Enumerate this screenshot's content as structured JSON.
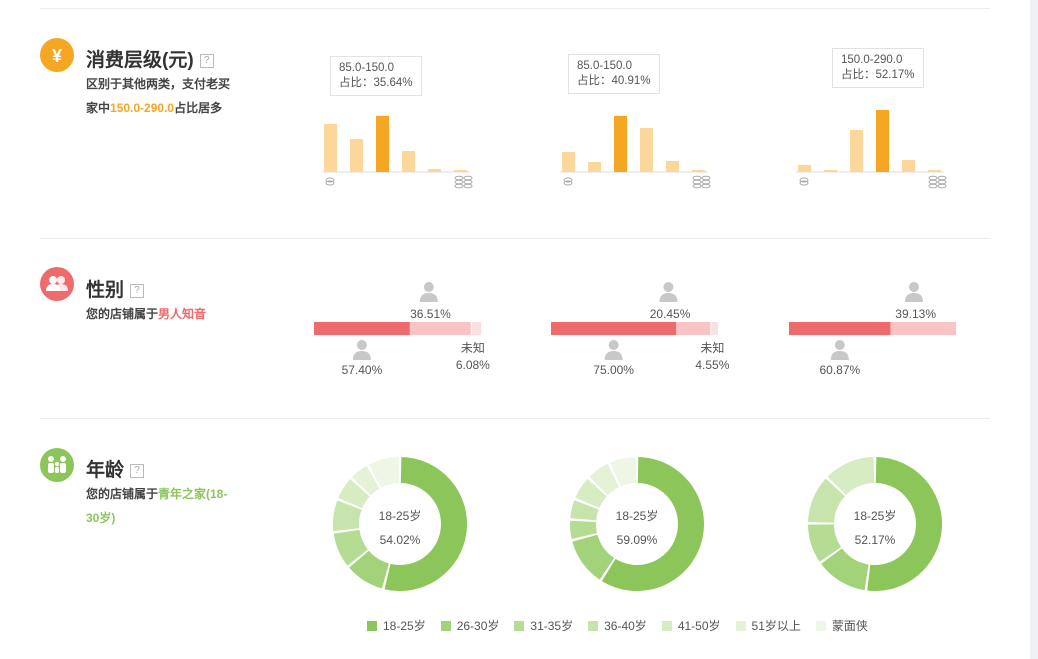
{
  "sections": {
    "spending": {
      "title": "消费层级(元)",
      "help": "?",
      "desc_line1": "区别于其他两类，支付老买",
      "desc_prefix": "家中",
      "desc_highlight": "150.0-290.0",
      "desc_suffix": "占比居多"
    },
    "gender": {
      "title": "性别",
      "help": "?",
      "desc_prefix": "您的店铺属于",
      "desc_highlight": "男人知音"
    },
    "age": {
      "title": "年龄",
      "help": "?",
      "desc_prefix": "您的店铺属于",
      "desc_highlight": "青年之家(18-",
      "desc_highlight2": "30岁)"
    }
  },
  "icons": {
    "spending": "yuan-icon",
    "gender": "people-icon",
    "age": "family-icon",
    "person": "person-icon",
    "coin_small": "coin-icon",
    "coin_stack": "coin-stack-icon"
  },
  "colors": {
    "orange": "#f5a623",
    "orange_light": "#fbd79b",
    "red": "#ef6b6b",
    "pink": "#f8c4c4",
    "green_dark": "#8cc65a",
    "green_pale": "#eef7e6"
  },
  "chart_data": [
    {
      "type": "bar",
      "tooltip_range": "85.0-150.0",
      "tooltip_label": "占比：35.64%",
      "values": [
        48,
        33,
        56,
        21,
        3,
        2
      ],
      "highlight_index": 2
    },
    {
      "type": "bar",
      "tooltip_range": "85.0-150.0",
      "tooltip_label": "占比：40.91%",
      "values": [
        20,
        10,
        56,
        44,
        11,
        2
      ],
      "highlight_index": 2
    },
    {
      "type": "bar",
      "tooltip_range": "150.0-290.0",
      "tooltip_label": "占比：52.17%",
      "values": [
        7,
        2,
        42,
        62,
        12,
        2
      ],
      "highlight_index": 3
    },
    {
      "type": "bar",
      "male_pct": 57.4,
      "female_pct": 36.51,
      "unknown_pct": 6.08,
      "male_label": "57.40%",
      "female_label": "36.51%",
      "unknown_label": "6.08%",
      "unknown_name": "未知"
    },
    {
      "type": "bar",
      "male_pct": 75.0,
      "female_pct": 20.45,
      "unknown_pct": 4.55,
      "male_label": "75.00%",
      "female_label": "20.45%",
      "unknown_label": "4.55%",
      "unknown_name": "未知"
    },
    {
      "type": "bar",
      "male_pct": 60.87,
      "female_pct": 39.13,
      "unknown_pct": 0,
      "male_label": "60.87%",
      "female_label": "39.13%",
      "unknown_label": "",
      "unknown_name": ""
    },
    {
      "type": "pie",
      "center_label": "18-25岁",
      "center_value": "54.02%",
      "values": [
        54.02,
        10,
        9,
        8,
        6,
        5,
        7.98
      ]
    },
    {
      "type": "pie",
      "center_label": "18-25岁",
      "center_value": "59.09%",
      "values": [
        59.09,
        12,
        5,
        5,
        6,
        6,
        6.91
      ]
    },
    {
      "type": "pie",
      "center_label": "18-25岁",
      "center_value": "52.17%",
      "values": [
        52.17,
        13,
        10,
        12,
        12.83,
        0,
        0
      ]
    }
  ],
  "age_legend": [
    {
      "label": "18-25岁",
      "color": "#8cc65a"
    },
    {
      "label": "26-30岁",
      "color": "#a2d279"
    },
    {
      "label": "31-35岁",
      "color": "#b5dc93"
    },
    {
      "label": "36-40岁",
      "color": "#c6e4ab"
    },
    {
      "label": "41-50岁",
      "color": "#d6ecc3"
    },
    {
      "label": "51岁以上",
      "color": "#e4f2d8"
    },
    {
      "label": "蒙面侠",
      "color": "#eef7e6"
    }
  ]
}
